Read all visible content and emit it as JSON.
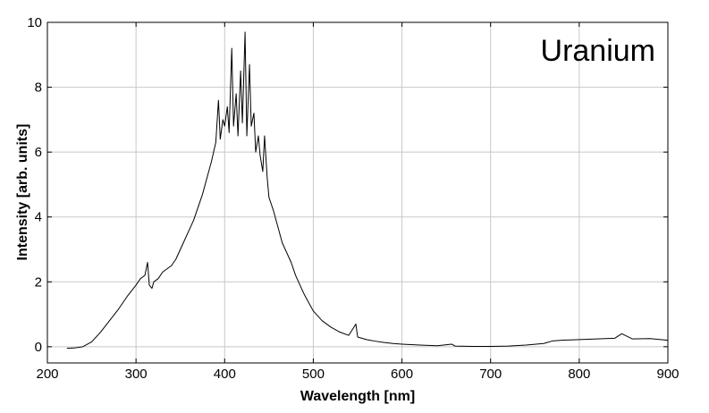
{
  "chart_data": {
    "type": "line",
    "title": "Uranium",
    "xlabel": "Wavelength [nm]",
    "ylabel": "Intensity [arb. units]",
    "xlim": [
      200,
      900
    ],
    "ylim": [
      -0.5,
      10
    ],
    "xticks": [
      200,
      300,
      400,
      500,
      600,
      700,
      800,
      900
    ],
    "yticks": [
      0,
      2,
      4,
      6,
      8,
      10
    ],
    "grid": true,
    "legend": "none",
    "line_color": "#000000",
    "grid_color": "#c8c8c8",
    "series": [
      {
        "x": [
          222,
          230,
          240,
          250,
          260,
          270,
          280,
          290,
          300,
          305,
          310,
          313,
          315,
          318,
          320,
          325,
          330,
          335,
          340,
          345,
          350,
          355,
          360,
          365,
          370,
          375,
          380,
          385,
          390,
          393,
          395,
          398,
          400,
          403,
          405,
          408,
          410,
          413,
          415,
          418,
          420,
          423,
          425,
          428,
          430,
          433,
          435,
          438,
          440,
          443,
          445,
          448,
          450,
          455,
          460,
          465,
          470,
          475,
          480,
          485,
          490,
          495,
          500,
          510,
          520,
          530,
          540,
          548,
          550,
          560,
          570,
          580,
          590,
          600,
          620,
          640,
          656,
          660,
          680,
          700,
          720,
          740,
          760,
          770,
          780,
          800,
          820,
          840,
          848,
          860,
          880,
          900
        ],
        "y": [
          -0.05,
          -0.04,
          0.0,
          0.15,
          0.45,
          0.8,
          1.15,
          1.55,
          1.9,
          2.1,
          2.2,
          2.6,
          1.9,
          1.8,
          2.0,
          2.1,
          2.3,
          2.4,
          2.5,
          2.7,
          3.0,
          3.3,
          3.6,
          3.9,
          4.3,
          4.7,
          5.2,
          5.7,
          6.3,
          7.6,
          6.4,
          7.0,
          6.8,
          7.4,
          6.6,
          9.2,
          6.8,
          7.8,
          6.5,
          8.5,
          6.9,
          9.7,
          6.5,
          8.7,
          6.8,
          7.2,
          6.0,
          6.5,
          5.9,
          5.4,
          6.5,
          5.2,
          4.6,
          4.2,
          3.7,
          3.2,
          2.9,
          2.6,
          2.2,
          1.9,
          1.6,
          1.35,
          1.1,
          0.8,
          0.6,
          0.45,
          0.35,
          0.7,
          0.3,
          0.22,
          0.17,
          0.13,
          0.1,
          0.08,
          0.05,
          0.03,
          0.08,
          0.02,
          0.01,
          0.01,
          0.02,
          0.05,
          0.1,
          0.18,
          0.2,
          0.22,
          0.24,
          0.26,
          0.4,
          0.24,
          0.25,
          0.2
        ]
      }
    ]
  }
}
